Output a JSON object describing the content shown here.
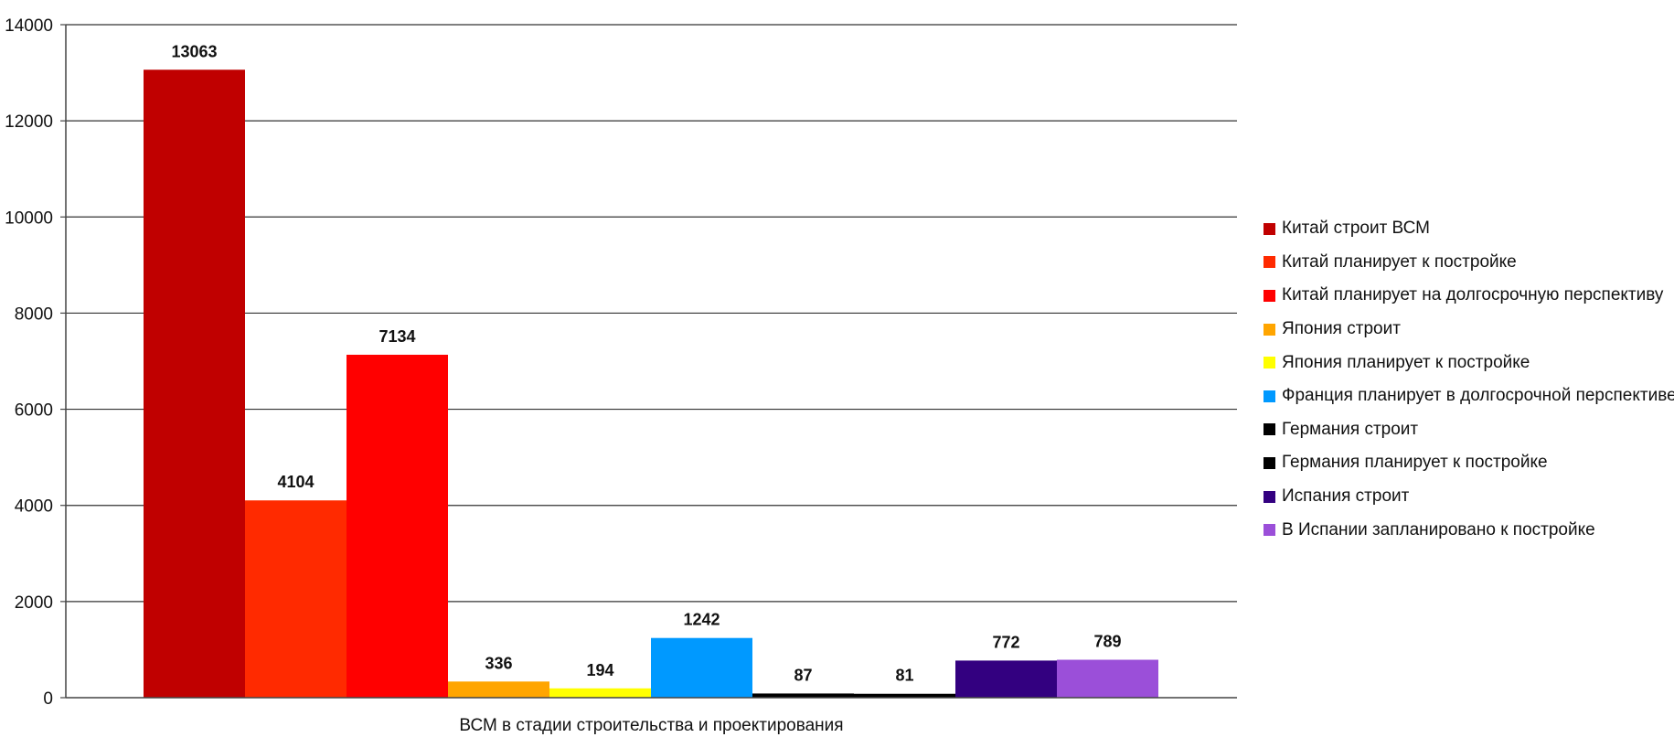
{
  "chart_data": {
    "type": "bar",
    "xlabel": "ВСМ в стадии строительства и проектирования",
    "ylim": [
      0,
      14000
    ],
    "yticks": [
      0,
      2000,
      4000,
      6000,
      8000,
      10000,
      12000,
      14000
    ],
    "grid": true,
    "legend_position": "right",
    "series": [
      {
        "name": "Китай строит ВСМ",
        "value": 13063,
        "color": "#c00000"
      },
      {
        "name": "Китай планирует к постройке",
        "value": 4104,
        "color": "#ff2a00"
      },
      {
        "name": "Китай планирует на долгосрочную перспективу",
        "value": 7134,
        "color": "#ff0000"
      },
      {
        "name": "Япония строит",
        "value": 336,
        "color": "#ffa500"
      },
      {
        "name": "Япония планирует к постройке",
        "value": 194,
        "color": "#ffff00"
      },
      {
        "name": "Франция планирует в долгосрочной перспективе",
        "value": 1242,
        "color": "#0099ff"
      },
      {
        "name": "Германия строит",
        "value": 87,
        "color": "#000000"
      },
      {
        "name": "Германия планирует к постройке",
        "value": 81,
        "color": "#000000"
      },
      {
        "name": "Испания строит",
        "value": 772,
        "color": "#330080"
      },
      {
        "name": "В Испании запланировано к постройке",
        "value": 789,
        "color": "#9b4fd9"
      }
    ]
  }
}
